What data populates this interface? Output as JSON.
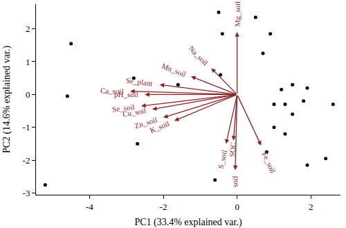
{
  "chart_data": {
    "type": "biplot",
    "x_label": "PC1 (33.4% explained var.)",
    "y_label": "PC2 (14.6% explained var.)",
    "xlim": [
      -5.45,
      2.8
    ],
    "ylim": [
      -3.05,
      2.75
    ],
    "xticks": [
      -4,
      -2,
      0,
      2
    ],
    "yticks": [
      -3,
      -2,
      -1,
      0,
      1,
      2
    ],
    "grid": false,
    "series": [
      {
        "type": "scatter",
        "color": "#000000",
        "marker": "circle",
        "x": [
          -5.2,
          -4.5,
          -4.6,
          -2.7,
          -2.8,
          -1.6,
          -0.5,
          -0.4,
          -0.45,
          0.5,
          0.9,
          0.7,
          1.5,
          1.2,
          1.9,
          2.6,
          1.8,
          1.0,
          1.3,
          1.5,
          1.0,
          1.3,
          0.8,
          1.9,
          2.4,
          -0.6
        ],
        "y": [
          -2.75,
          1.55,
          -0.05,
          -1.5,
          0.5,
          0.3,
          2.5,
          1.85,
          0.6,
          2.35,
          1.85,
          1.25,
          0.3,
          0.15,
          0.2,
          -0.3,
          -0.2,
          -0.3,
          -0.3,
          -0.6,
          -1.0,
          -1.2,
          -1.75,
          -2.15,
          -1.95,
          -2.6
        ]
      },
      {
        "type": "arrow",
        "color": "#8b2323",
        "labels": [
          "Mg_soil",
          "Na_soil",
          "Mn_soil",
          "Se_plant",
          "Ca_soil",
          "pH_soil",
          "Se_soil",
          "Cu_soil",
          "Zn_soil",
          "K_soil",
          "S_soil",
          "SOC",
          "Fe_soil",
          "soil"
        ],
        "x": [
          0.0,
          -0.7,
          -1.25,
          -2.1,
          -2.9,
          -2.5,
          -2.6,
          -2.3,
          -2.0,
          -1.7,
          -0.3,
          -0.1,
          0.65,
          -0.05
        ],
        "y": [
          1.9,
          0.8,
          0.55,
          0.3,
          0.1,
          0.0,
          -0.35,
          -0.45,
          -0.7,
          -0.8,
          -1.5,
          -1.4,
          -1.55,
          -2.3
        ]
      }
    ]
  }
}
